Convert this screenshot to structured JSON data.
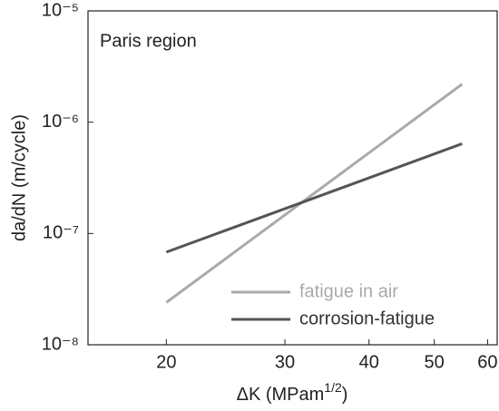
{
  "chart_data": {
    "type": "line",
    "annotation": "Paris region",
    "x_label": [
      "ΔK (MPam",
      "1/2",
      ")"
    ],
    "y_label": "da/dN (m/cycle)",
    "x": [
      20,
      55
    ],
    "series": [
      {
        "name": "fatigue in air",
        "color": "#aaaaaa",
        "values": [
          2.4e-08,
          2.2e-06
        ]
      },
      {
        "name": "corrosion-fatigue",
        "color": "#555555",
        "values": [
          6.8e-08,
          6.4e-07
        ]
      }
    ],
    "xlim": [
      15.3,
      62
    ],
    "xticks": [
      20,
      30,
      40,
      50,
      60
    ],
    "xscale": "log",
    "ylim": [
      1e-08,
      1e-05
    ],
    "yticks": [
      {
        "value": 1e-08,
        "label": "10⁻⁸"
      },
      {
        "value": 1e-07,
        "label": "10⁻⁷"
      },
      {
        "value": 1e-06,
        "label": "10⁻⁶"
      },
      {
        "value": 1e-05,
        "label": "10⁻⁵"
      }
    ],
    "yscale": "log",
    "grid": false,
    "legend": "lower right"
  }
}
